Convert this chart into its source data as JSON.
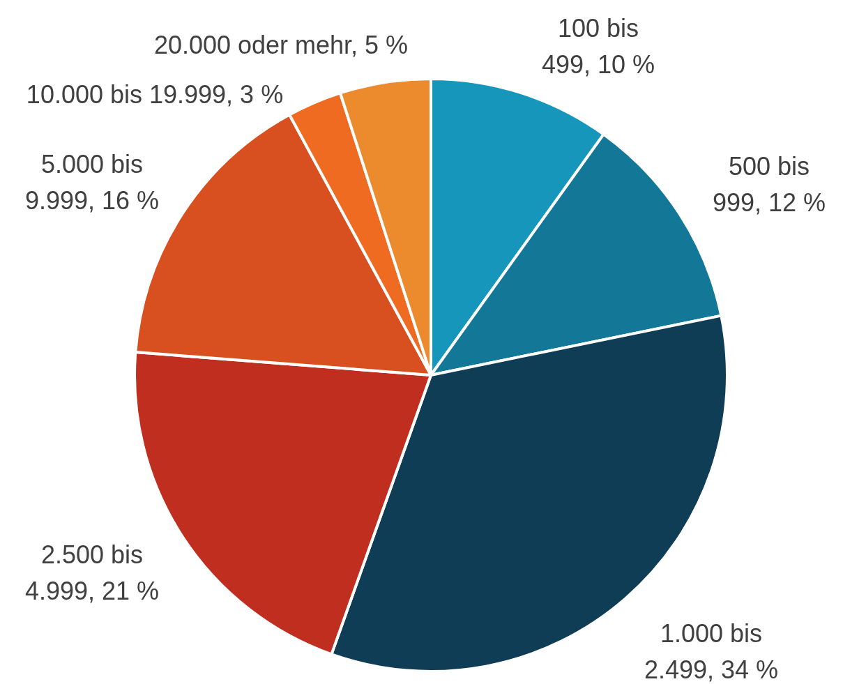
{
  "chart_data": {
    "type": "pie",
    "categories": [
      "100 bis 499",
      "500 bis 999",
      "1.000 bis 2.499",
      "2.500 bis 4.999",
      "5.000 bis 9.999",
      "10.000 bis 19.999",
      "20.000 oder mehr"
    ],
    "values": [
      10,
      12,
      34,
      21,
      16,
      3,
      5
    ],
    "value_labels": [
      "10 %",
      "12 %",
      "34 %",
      "21 %",
      "16 %",
      "3 %",
      "5 %"
    ],
    "colors": [
      "#1696bb",
      "#137898",
      "#0f3d56",
      "#bf2e1e",
      "#d84f20",
      "#f06b22",
      "#ec8a2e"
    ]
  }
}
